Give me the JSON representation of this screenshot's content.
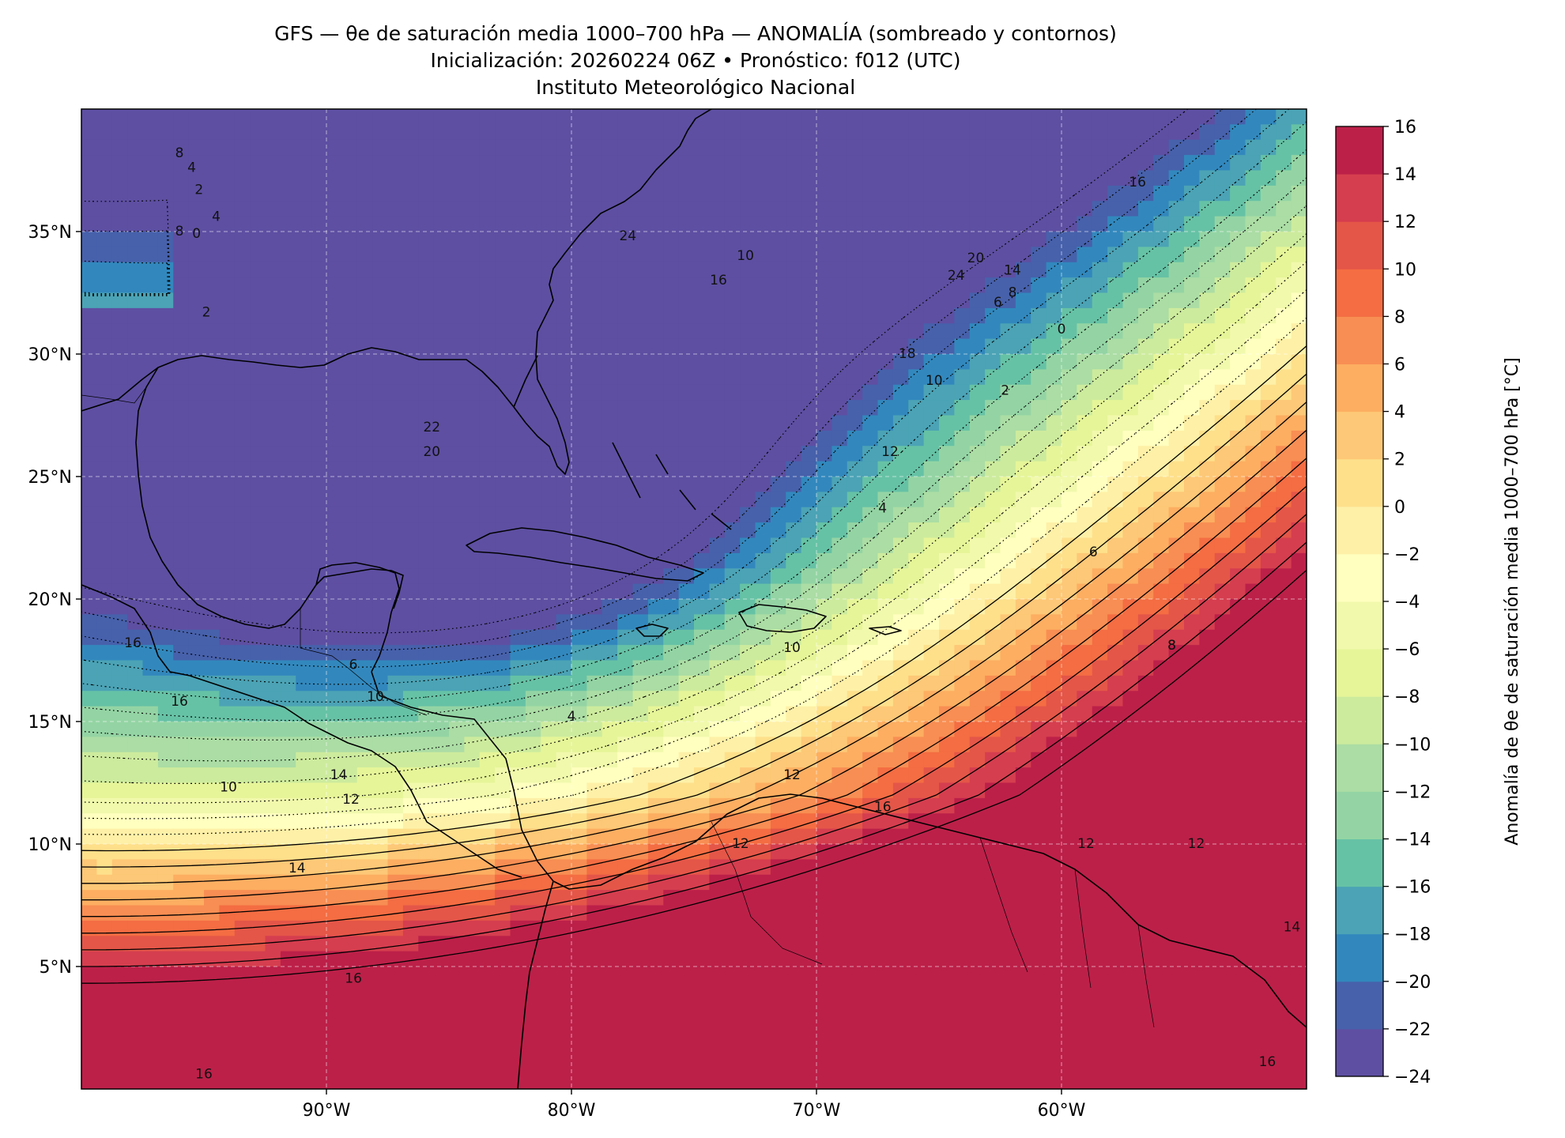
{
  "titles": {
    "line1": "GFS — θe de saturación media 1000–700 hPa — ANOMALÍA (sombreado y contornos)",
    "line2": "Inicialización: 20260224 06Z   •   Pronóstico: f012 (UTC)",
    "line3": "Instituto Meteorológico Nacional"
  },
  "map": {
    "lon_range": [
      -100,
      -50
    ],
    "lat_range": [
      0,
      40
    ],
    "xticks": [
      {
        "lon": -90,
        "label": "90°W"
      },
      {
        "lon": -80,
        "label": "80°W"
      },
      {
        "lon": -70,
        "label": "70°W"
      },
      {
        "lon": -60,
        "label": "60°W"
      }
    ],
    "yticks": [
      {
        "lat": 35,
        "label": "35°N"
      },
      {
        "lat": 30,
        "label": "30°N"
      },
      {
        "lat": 25,
        "label": "25°N"
      },
      {
        "lat": 20,
        "label": "20°N"
      },
      {
        "lat": 15,
        "label": "15°N"
      },
      {
        "lat": 10,
        "label": "10°N"
      },
      {
        "lat": 5,
        "label": "5°N"
      }
    ],
    "contour_labels": [
      {
        "lon": -96.0,
        "lat": 38.2,
        "text": "8"
      },
      {
        "lon": -95.5,
        "lat": 37.6,
        "text": "4"
      },
      {
        "lon": -96.0,
        "lat": 35.0,
        "text": "8"
      },
      {
        "lon": -95.3,
        "lat": 34.9,
        "text": "0"
      },
      {
        "lon": -94.5,
        "lat": 35.6,
        "text": "4"
      },
      {
        "lon": -95.2,
        "lat": 36.7,
        "text": "2"
      },
      {
        "lon": -94.9,
        "lat": 31.7,
        "text": "2"
      },
      {
        "lon": -85.7,
        "lat": 27.0,
        "text": "22"
      },
      {
        "lon": -85.7,
        "lat": 26.0,
        "text": "20"
      },
      {
        "lon": -74.0,
        "lat": 33.0,
        "text": "16"
      },
      {
        "lon": -72.9,
        "lat": 34.0,
        "text": "10"
      },
      {
        "lon": -77.7,
        "lat": 34.8,
        "text": "24"
      },
      {
        "lon": -64.3,
        "lat": 33.2,
        "text": "24"
      },
      {
        "lon": -63.5,
        "lat": 33.9,
        "text": "20"
      },
      {
        "lon": -62.0,
        "lat": 33.4,
        "text": "14"
      },
      {
        "lon": -62.0,
        "lat": 32.5,
        "text": "8"
      },
      {
        "lon": -62.6,
        "lat": 32.1,
        "text": "6"
      },
      {
        "lon": -60.0,
        "lat": 31.0,
        "text": "0"
      },
      {
        "lon": -66.3,
        "lat": 30.0,
        "text": "18"
      },
      {
        "lon": -65.2,
        "lat": 28.9,
        "text": "10"
      },
      {
        "lon": -62.3,
        "lat": 28.5,
        "text": "2"
      },
      {
        "lon": -56.9,
        "lat": 37.0,
        "text": "16"
      },
      {
        "lon": -67.0,
        "lat": 26.0,
        "text": "12"
      },
      {
        "lon": -67.3,
        "lat": 23.7,
        "text": "4"
      },
      {
        "lon": -58.7,
        "lat": 21.9,
        "text": "6"
      },
      {
        "lon": -55.5,
        "lat": 18.1,
        "text": "8"
      },
      {
        "lon": -55.5,
        "lat": 18.1,
        "text": "8"
      },
      {
        "lon": -71.0,
        "lat": 18.0,
        "text": "10"
      },
      {
        "lon": -80.0,
        "lat": 15.2,
        "text": "4"
      },
      {
        "lon": -88.9,
        "lat": 17.3,
        "text": "6"
      },
      {
        "lon": -88.0,
        "lat": 16.0,
        "text": "10"
      },
      {
        "lon": -97.9,
        "lat": 18.2,
        "text": "16"
      },
      {
        "lon": -96.0,
        "lat": 15.8,
        "text": "16"
      },
      {
        "lon": -89.5,
        "lat": 12.8,
        "text": "14"
      },
      {
        "lon": -89.0,
        "lat": 11.8,
        "text": "12"
      },
      {
        "lon": -94.0,
        "lat": 12.3,
        "text": "10"
      },
      {
        "lon": -91.2,
        "lat": 9.0,
        "text": "14"
      },
      {
        "lon": -71.0,
        "lat": 12.8,
        "text": "12"
      },
      {
        "lon": -73.1,
        "lat": 10.0,
        "text": "12"
      },
      {
        "lon": -67.3,
        "lat": 11.5,
        "text": "16"
      },
      {
        "lon": -59.0,
        "lat": 10.0,
        "text": "12"
      },
      {
        "lon": -54.5,
        "lat": 10.0,
        "text": "12"
      },
      {
        "lon": -88.9,
        "lat": 4.5,
        "text": "16"
      },
      {
        "lon": -95.0,
        "lat": 0.6,
        "text": "16"
      },
      {
        "lon": -51.6,
        "lat": 1.1,
        "text": "16"
      },
      {
        "lon": -50.6,
        "lat": 6.6,
        "text": "14"
      }
    ]
  },
  "colorbar": {
    "label": "Anomalía de θe de saturación media 1000–700 hPa [°C]",
    "levels": [
      -24,
      -22,
      -20,
      -18,
      -16,
      -14,
      -12,
      -10,
      -8,
      -6,
      -4,
      -2,
      0,
      2,
      4,
      6,
      8,
      10,
      12,
      14,
      16
    ],
    "tick_labels": [
      "−24",
      "−22",
      "−20",
      "−18",
      "−16",
      "−14",
      "−12",
      "−10",
      "−8",
      "−6",
      "−4",
      "−2",
      "0",
      "2",
      "4",
      "6",
      "8",
      "10",
      "12",
      "14",
      "16"
    ],
    "colors": [
      "#5e4fa2",
      "#4761ab",
      "#3288bd",
      "#4ba3b5",
      "#66c2a5",
      "#94d4a4",
      "#abdda4",
      "#cdeb9d",
      "#e6f598",
      "#f1f9ac",
      "#ffffbf",
      "#fef0a7",
      "#fee08b",
      "#fdc877",
      "#fdae61",
      "#f88e53",
      "#f46d43",
      "#e45648",
      "#d53e4f",
      "#bc2049",
      "#9e0142"
    ]
  }
}
